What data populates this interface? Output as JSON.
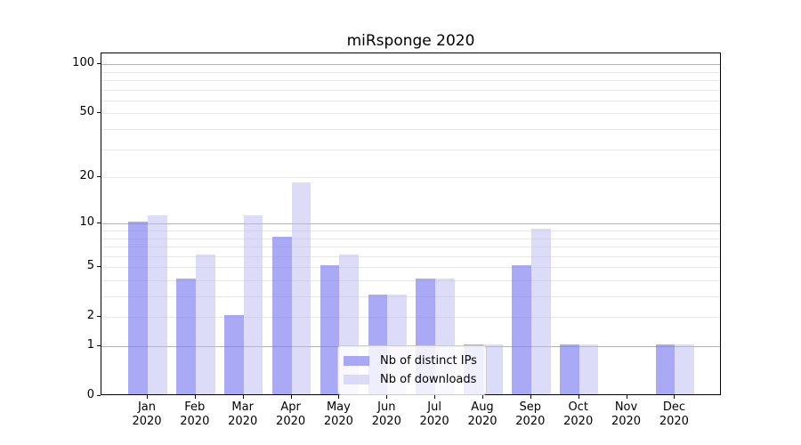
{
  "figure": {
    "background": "#ffffff"
  },
  "chart_data": {
    "type": "bar",
    "title": "miRsponge 2020",
    "x": [
      "Jan",
      "Feb",
      "Mar",
      "Apr",
      "May",
      "Jun",
      "Jul",
      "Aug",
      "Sep",
      "Oct",
      "Nov",
      "Dec"
    ],
    "x_year": "2020",
    "series": [
      {
        "key": "distinct-ips",
        "name": "Nb of distinct IPs",
        "color": "rgba(125,125,241,0.66)",
        "values": [
          10,
          4,
          2,
          8,
          5,
          3,
          4,
          1,
          5,
          1,
          0,
          1
        ]
      },
      {
        "key": "downloads",
        "name": "Nb of downloads",
        "color": "rgba(185,185,243,0.5)",
        "values": [
          11,
          6,
          11,
          18,
          6,
          3,
          4,
          1,
          9,
          1,
          0,
          1
        ]
      }
    ],
    "yscale": "log1p",
    "ylim": [
      0,
      117
    ],
    "yticks": [
      0,
      1,
      2,
      5,
      10,
      20,
      50,
      100
    ],
    "grid": {
      "major_values": [
        1,
        10,
        100
      ],
      "minor_values": [
        2,
        3,
        4,
        5,
        6,
        7,
        8,
        9,
        20,
        30,
        40,
        50,
        60,
        70,
        80,
        90
      ],
      "major_color": "#b3b3b3",
      "minor_color": "#e8e8e8"
    },
    "legend_position": "lower center",
    "axis_color": "#000000"
  }
}
